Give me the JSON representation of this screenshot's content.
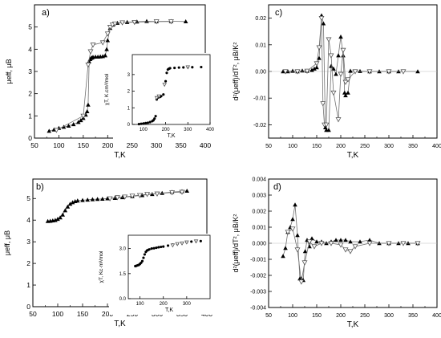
{
  "figure": {
    "background": "#ffffff",
    "line_color": "#707070",
    "marker_color": "#000000"
  },
  "chart_data": [
    {
      "id": "a",
      "panel_label": "a)",
      "type": "scatter",
      "xlabel": "T,K",
      "ylabel": "μeff, μB",
      "xlim": [
        50,
        400
      ],
      "ylim": [
        0,
        6
      ],
      "xticks": [
        50,
        100,
        150,
        200,
        250,
        300,
        350,
        400
      ],
      "yticks": [
        0,
        1,
        2,
        3,
        4,
        5
      ],
      "series": [
        {
          "marker": "filled-triangle-up",
          "connect": true,
          "x": [
            80,
            90,
            100,
            110,
            120,
            130,
            140,
            145,
            150,
            155,
            158,
            160,
            162,
            164,
            166,
            168,
            170,
            175,
            180,
            185,
            190,
            195,
            198,
            200,
            205,
            210,
            220,
            240,
            260,
            280,
            300,
            330,
            360
          ],
          "y": [
            0.32,
            0.38,
            0.45,
            0.5,
            0.55,
            0.62,
            0.72,
            0.8,
            0.9,
            1.05,
            1.2,
            1.5,
            3.45,
            3.55,
            3.6,
            3.62,
            3.65,
            3.66,
            3.66,
            3.67,
            3.68,
            3.72,
            4.0,
            4.4,
            4.95,
            5.1,
            5.18,
            5.22,
            5.24,
            5.26,
            5.25,
            5.26,
            5.25
          ]
        },
        {
          "marker": "open-triangle-down",
          "connect": true,
          "x": [
            95,
            150,
            160,
            165,
            170,
            190,
            200,
            205,
            210,
            215,
            230,
            255,
            300,
            330
          ],
          "y": [
            0.36,
            1.0,
            3.3,
            3.9,
            4.2,
            4.3,
            4.7,
            5.0,
            5.1,
            5.15,
            5.2,
            5.22,
            5.25,
            5.25
          ]
        }
      ],
      "inset": {
        "type": "scatter",
        "xlabel": "T,K",
        "ylabel": "χT, K.cm³/mol",
        "xlim": [
          50,
          400
        ],
        "ylim": [
          0,
          4.2
        ],
        "xticks": [
          100,
          200,
          300,
          400
        ],
        "yticks": [
          0,
          1,
          2,
          3
        ],
        "series": [
          {
            "marker": "filled-circle",
            "connect": false,
            "x": [
              80,
              90,
              100,
              110,
              120,
              130,
              140,
              145,
              150,
              155,
              160,
              162,
              165,
              170,
              175,
              180,
              190,
              200,
              205,
              210,
              215,
              220,
              240,
              260,
              280,
              300,
              320,
              360
            ],
            "y": [
              0.02,
              0.04,
              0.05,
              0.08,
              0.1,
              0.14,
              0.2,
              0.25,
              0.35,
              0.5,
              1.5,
              1.6,
              1.62,
              1.64,
              1.66,
              1.7,
              1.8,
              2.6,
              3.1,
              3.3,
              3.35,
              3.38,
              3.4,
              3.42,
              3.43,
              3.44,
              3.44,
              3.45
            ]
          },
          {
            "marker": "open-triangle-down",
            "connect": false,
            "x": [
              160,
              170,
              195,
              300
            ],
            "y": [
              1.6,
              1.7,
              2.4,
              3.45
            ]
          }
        ]
      }
    },
    {
      "id": "c",
      "panel_label": "c)",
      "type": "line",
      "xlabel": "T,K",
      "ylabel": "d²(μeff)/dT², μB/K²",
      "xlim": [
        50,
        400
      ],
      "ylim": [
        -0.025,
        0.025
      ],
      "xticks": [
        50,
        100,
        150,
        200,
        250,
        300,
        350,
        400
      ],
      "yticks": [
        -0.02,
        -0.01,
        0.0,
        0.01,
        0.02
      ],
      "ytick_labels": [
        "-0.02",
        "-0.01",
        "0.00",
        "0.01",
        "0.02"
      ],
      "series": [
        {
          "marker": "filled-triangle-up",
          "connect": true,
          "x": [
            80,
            90,
            100,
            110,
            120,
            130,
            140,
            145,
            150,
            155,
            160,
            164,
            168,
            170,
            175,
            180,
            185,
            190,
            195,
            200,
            205,
            208,
            210,
            215,
            220,
            240,
            260,
            280,
            300,
            320,
            360
          ],
          "y": [
            0,
            0,
            0.0002,
            0,
            0.0003,
            0.0002,
            0.0005,
            0.001,
            0.0015,
            0.005,
            0.021,
            0.018,
            -0.021,
            -0.022,
            -0.022,
            0.002,
            0.001,
            -0.001,
            0.006,
            0.013,
            0.006,
            -0.008,
            -0.009,
            -0.008,
            0.0002,
            0.0001,
            0,
            0,
            0,
            0,
            0
          ]
        },
        {
          "marker": "open-triangle-down",
          "connect": true,
          "x": [
            85,
            110,
            130,
            150,
            155,
            160,
            163,
            166,
            170,
            175,
            180,
            185,
            195,
            200,
            205,
            210,
            215,
            230,
            260,
            300,
            330
          ],
          "y": [
            0,
            0,
            0.0002,
            0.003,
            0.009,
            0.02,
            -0.012,
            -0.02,
            -0.02,
            0.012,
            0.006,
            -0.008,
            -0.018,
            -0.001,
            0.008,
            -0.004,
            -0.003,
            0,
            0,
            0,
            0
          ]
        }
      ]
    },
    {
      "id": "b",
      "panel_label": "b)",
      "type": "scatter",
      "xlabel": "T,K",
      "ylabel": "μeff, μB",
      "xlim": [
        50,
        400
      ],
      "ylim": [
        0,
        5.9
      ],
      "xticks": [
        50,
        100,
        150,
        200,
        250,
        300,
        350,
        400
      ],
      "yticks": [
        0,
        1,
        2,
        3,
        4,
        5
      ],
      "series": [
        {
          "marker": "filled-triangle-up",
          "connect": true,
          "x": [
            80,
            85,
            90,
            95,
            100,
            105,
            110,
            115,
            120,
            125,
            130,
            135,
            140,
            150,
            160,
            170,
            180,
            190,
            200,
            215,
            230,
            250,
            270,
            290,
            310,
            330,
            350,
            360
          ],
          "y": [
            3.95,
            3.96,
            3.98,
            4.0,
            4.05,
            4.12,
            4.25,
            4.45,
            4.62,
            4.75,
            4.82,
            4.87,
            4.9,
            4.92,
            4.94,
            4.96,
            4.97,
            4.98,
            5.0,
            5.02,
            5.05,
            5.1,
            5.15,
            5.2,
            5.25,
            5.3,
            5.33,
            5.35
          ]
        },
        {
          "marker": "open-triangle-down",
          "connect": true,
          "x": [
            205,
            220,
            235,
            250,
            265,
            280,
            300,
            330,
            350
          ],
          "y": [
            5.0,
            5.05,
            5.08,
            5.12,
            5.15,
            5.2,
            5.22,
            5.28,
            5.3
          ]
        }
      ],
      "inset": {
        "type": "scatter",
        "xlabel": "T,K",
        "ylabel": "χT, Kc·m³/mol",
        "xlim": [
          50,
          400
        ],
        "ylim": [
          0,
          3.8
        ],
        "xticks": [
          100,
          200,
          300
        ],
        "yticks": [
          0.0,
          1.5,
          3.0
        ],
        "ytick_labels": [
          "0.0",
          "1.5",
          "3.0"
        ],
        "series": [
          {
            "marker": "filled-circle",
            "connect": false,
            "x": [
              80,
              85,
              90,
              95,
              100,
              105,
              110,
              115,
              120,
              125,
              130,
              135,
              140,
              150,
              160,
              170,
              180,
              190,
              200,
              220,
              240,
              260,
              280,
              300,
              320,
              340,
              360
            ],
            "y": [
              1.95,
              1.97,
              2.0,
              2.02,
              2.08,
              2.15,
              2.25,
              2.45,
              2.65,
              2.8,
              2.88,
              2.92,
              2.95,
              3.0,
              3.02,
              3.05,
              3.08,
              3.1,
              3.12,
              3.18,
              3.24,
              3.28,
              3.33,
              3.38,
              3.42,
              3.44,
              3.45
            ]
          },
          {
            "marker": "open-triangle-down",
            "connect": false,
            "x": [
              240,
              260,
              280,
              300,
              340
            ],
            "y": [
              3.2,
              3.28,
              3.32,
              3.38,
              3.44
            ]
          }
        ]
      }
    },
    {
      "id": "d",
      "panel_label": "d)",
      "type": "line",
      "xlabel": "T,K",
      "ylabel": "d²(μeff)/dT², μB/K²",
      "xlim": [
        50,
        400
      ],
      "ylim": [
        -0.004,
        0.004
      ],
      "xticks": [
        50,
        100,
        150,
        200,
        250,
        300,
        350,
        400
      ],
      "yticks": [
        -0.004,
        -0.003,
        -0.002,
        -0.001,
        0.0,
        0.001,
        0.002,
        0.003,
        0.004
      ],
      "ytick_labels": [
        "-0.004",
        "-0.003",
        "-0.002",
        "-0.001",
        "0.000",
        "0.001",
        "0.002",
        "0.003",
        "0.004"
      ],
      "series": [
        {
          "marker": "filled-triangle-up",
          "connect": true,
          "x": [
            80,
            85,
            90,
            95,
            100,
            105,
            110,
            115,
            118,
            122,
            126,
            130,
            135,
            140,
            150,
            160,
            170,
            180,
            190,
            200,
            210,
            220,
            240,
            260,
            280,
            300,
            320,
            340,
            360
          ],
          "y": [
            -0.0008,
            -0.0003,
            0.0007,
            0.001,
            0.0015,
            0.0024,
            0.0005,
            -0.0022,
            -0.0022,
            -0.0023,
            -0.0005,
            0.0002,
            -0.0002,
            0.0003,
            0.0001,
            0.0001,
            0,
            0.0001,
            0.0002,
            0.0002,
            0.0002,
            0.0001,
            0.0001,
            0.0002,
            0,
            0,
            0,
            0,
            0
          ]
        },
        {
          "marker": "open-triangle-down",
          "connect": true,
          "x": [
            90,
            100,
            110,
            118,
            125,
            135,
            145,
            160,
            180,
            200,
            210,
            220,
            230,
            260,
            300,
            330,
            360
          ],
          "y": [
            0.0007,
            0.0009,
            -0.0004,
            -0.0024,
            -0.0012,
            0.0001,
            -0.0002,
            0,
            0,
            -0.0001,
            -0.0004,
            -0.0005,
            -0.0002,
            0,
            0,
            0,
            0
          ]
        }
      ]
    }
  ]
}
